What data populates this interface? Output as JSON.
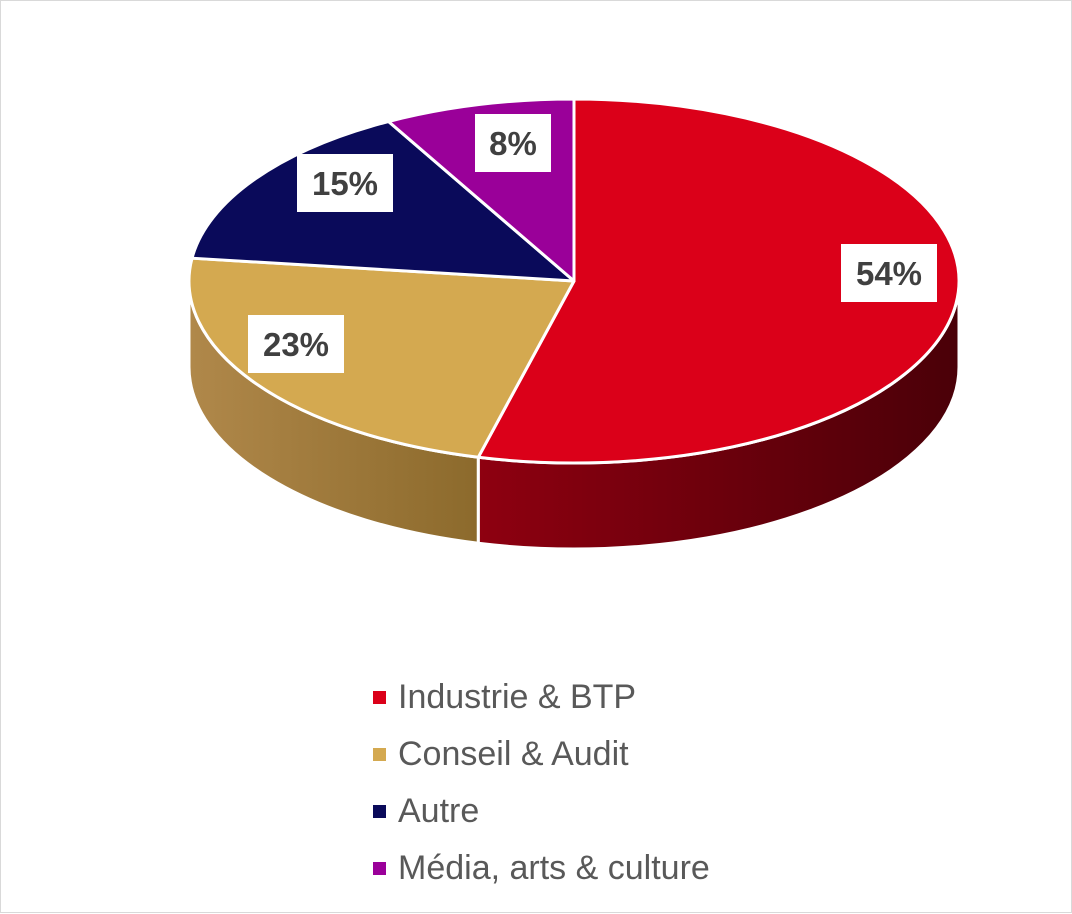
{
  "chart_data": {
    "type": "pie",
    "style": "3d",
    "start_angle_deg": 0,
    "direction": "clockwise",
    "legend_position": "bottom",
    "categories": [
      "Industrie & BTP",
      "Conseil & Audit",
      "Autre",
      "Média, arts & culture"
    ],
    "values": [
      54,
      23,
      15,
      8
    ],
    "data_labels": [
      "54%",
      "23%",
      "15%",
      "8%"
    ],
    "colors": [
      "#DB0019",
      "#D4A950",
      "#0A0A5A",
      "#9A0099"
    ],
    "side_colors": [
      [
        "#8E0010",
        "#4A0008"
      ],
      [
        "#B0884A",
        "#8C6A2C"
      ],
      [
        "#05052E",
        "#05052E"
      ],
      [
        "#5A005A",
        "#5A005A"
      ]
    ]
  }
}
